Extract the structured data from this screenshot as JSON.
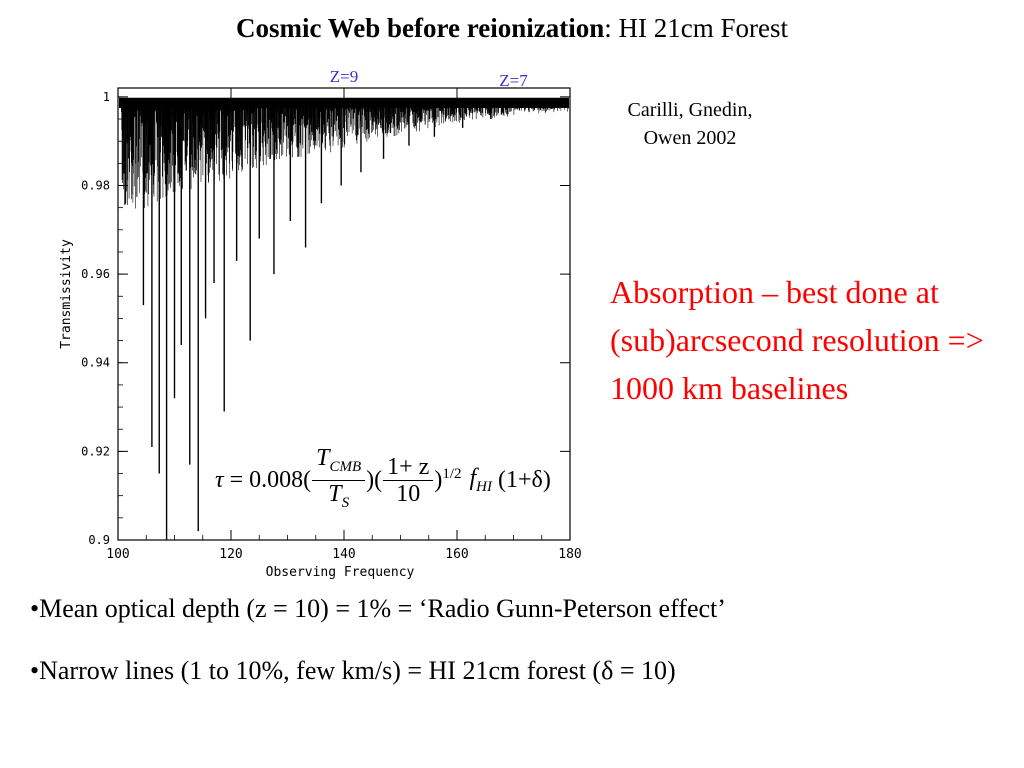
{
  "title": {
    "bold": "Cosmic Web before reionization",
    "rest": ": HI 21cm Forest"
  },
  "citation": {
    "line1": "Carilli, Gnedin,",
    "line2": "Owen 2002"
  },
  "note": {
    "text": "Absorption – best done at (sub)arcsecond resolution => 1000 km baselines",
    "color": "#ff0000"
  },
  "bullets": [
    "•Mean optical depth (z = 10) = 1%  =  ‘Radio Gunn-Peterson effect’",
    "•Narrow lines (1 to 10%, few km/s) = HI 21cm forest (δ = 10)"
  ],
  "formula": {
    "tau": "τ",
    "eq": "= 0.008(",
    "t_cmb": "T",
    "t_cmb_sub": "CMB",
    "t_s": "T",
    "t_s_sub": "S",
    "mid": ")(",
    "one_plus_z": "1+ z",
    "ten": "10",
    "exp": ")",
    "exp_sup": "1/2",
    "f": "f",
    "f_sub": "HI",
    "tail": "(1+δ)"
  },
  "chart_data": {
    "type": "line",
    "title": "",
    "xlabel": "Observing Frequency",
    "ylabel": "Transmissivity",
    "xlim": [
      100,
      180
    ],
    "ylim": [
      0.9,
      1.002
    ],
    "x_ticks": [
      "100",
      "120",
      "140",
      "160",
      "180"
    ],
    "y_ticks": [
      "0.9",
      "0.92",
      "0.94",
      "0.96",
      "0.98",
      "1"
    ],
    "annotations": [
      {
        "text": "Z=9",
        "x": 140,
        "color": "#3333cc"
      },
      {
        "text": "Z=7",
        "x": 170,
        "color": "#3333cc"
      }
    ],
    "series": [
      {
        "name": "HI 21cm forest absorption",
        "description": "Continuum near 1.0 with dense narrow absorption lines; line depth decreases with increasing frequency",
        "deep_lines": [
          {
            "x": 104.5,
            "y": 0.953
          },
          {
            "x": 106.0,
            "y": 0.921
          },
          {
            "x": 107.3,
            "y": 0.915
          },
          {
            "x": 108.6,
            "y": 0.9
          },
          {
            "x": 110.0,
            "y": 0.932
          },
          {
            "x": 111.2,
            "y": 0.944
          },
          {
            "x": 112.7,
            "y": 0.917
          },
          {
            "x": 114.2,
            "y": 0.902
          },
          {
            "x": 115.5,
            "y": 0.95
          },
          {
            "x": 117.0,
            "y": 0.958
          },
          {
            "x": 118.8,
            "y": 0.929
          },
          {
            "x": 121.0,
            "y": 0.963
          },
          {
            "x": 123.4,
            "y": 0.945
          },
          {
            "x": 125.0,
            "y": 0.968
          },
          {
            "x": 127.6,
            "y": 0.96
          },
          {
            "x": 130.5,
            "y": 0.972
          },
          {
            "x": 133.2,
            "y": 0.966
          },
          {
            "x": 136.0,
            "y": 0.976
          },
          {
            "x": 139.5,
            "y": 0.98
          },
          {
            "x": 143.0,
            "y": 0.983
          },
          {
            "x": 147.0,
            "y": 0.986
          },
          {
            "x": 151.5,
            "y": 0.989
          },
          {
            "x": 156.0,
            "y": 0.991
          },
          {
            "x": 161.0,
            "y": 0.993
          },
          {
            "x": 166.0,
            "y": 0.995
          },
          {
            "x": 172.0,
            "y": 0.997
          },
          {
            "x": 177.0,
            "y": 0.998
          }
        ]
      }
    ]
  }
}
